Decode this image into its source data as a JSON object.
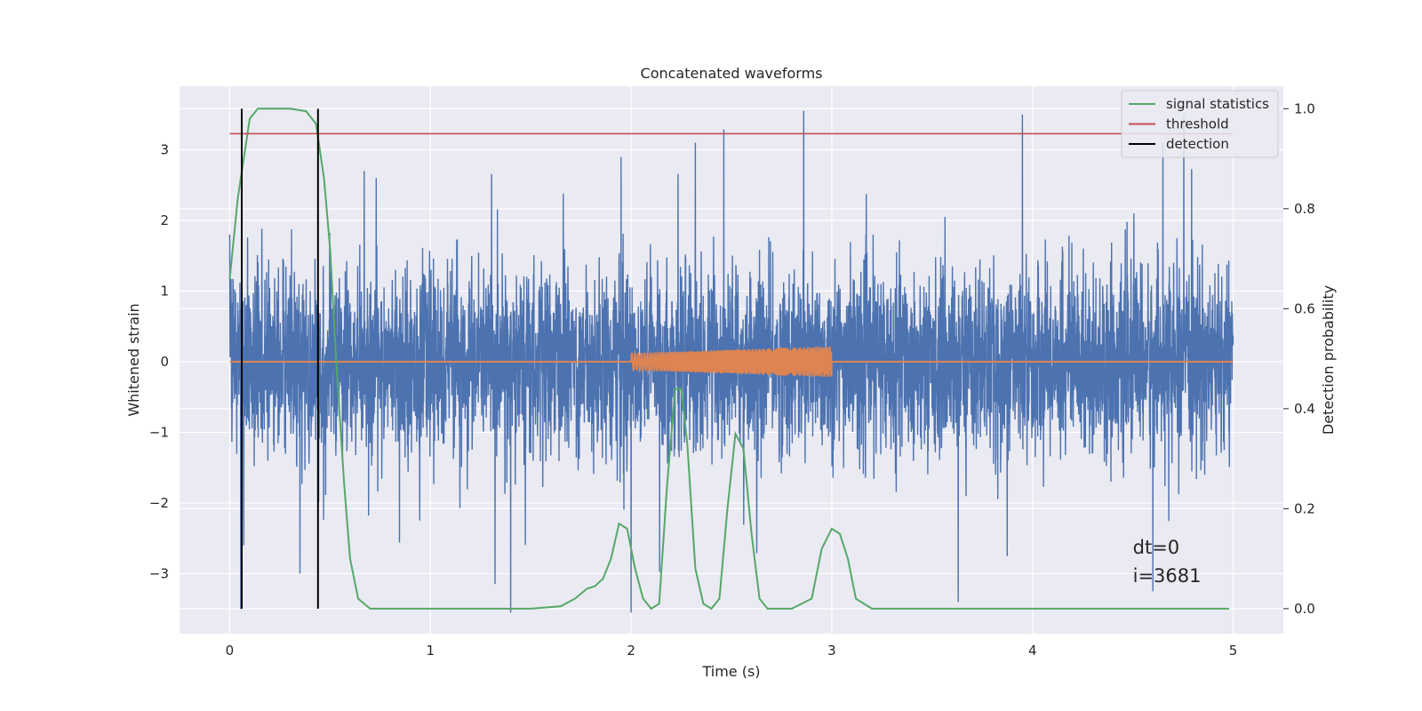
{
  "chart_data": {
    "type": "line",
    "title": "Concatenated waveforms",
    "xlabel": "Time (s)",
    "ylabel_left": "Whitened strain",
    "ylabel_right": "Detection probability",
    "xlim": [
      -0.25,
      5.25
    ],
    "ylim_left": [
      -3.85,
      3.9
    ],
    "ylim_right": [
      -0.05,
      1.045
    ],
    "x_ticks": [
      0,
      1,
      2,
      3,
      4,
      5
    ],
    "x_tick_labels": [
      "0",
      "1",
      "2",
      "3",
      "4",
      "5"
    ],
    "y_left_ticks": [
      -3,
      -2,
      -1,
      0,
      1,
      2,
      3
    ],
    "y_left_tick_labels": [
      "−3",
      "−2",
      "−1",
      "0",
      "1",
      "2",
      "3"
    ],
    "y_right_ticks": [
      0.0,
      0.2,
      0.4,
      0.6,
      0.8,
      1.0
    ],
    "y_right_tick_labels": [
      "0.0",
      "0.2",
      "0.4",
      "0.6",
      "0.8",
      "1.0"
    ],
    "grid": true,
    "legend_position": "top-right",
    "legend": [
      {
        "label": "signal statistics",
        "color": "#55a868"
      },
      {
        "label": "threshold",
        "color": "#c44e52"
      },
      {
        "label": "detection",
        "color": "#000000"
      }
    ],
    "series": [
      {
        "name": "",
        "role": "noisy strain",
        "axis": "left",
        "color": "#4c72b0",
        "x_range": [
          0,
          5
        ],
        "amplitude_envelope_typical": 1.0,
        "peaks": [
          {
            "x": 0.0,
            "y": 1.8
          },
          {
            "x": 0.07,
            "y": -2.6
          },
          {
            "x": 0.35,
            "y": -3.0
          },
          {
            "x": 0.73,
            "y": 2.6
          },
          {
            "x": 1.4,
            "y": -3.55
          },
          {
            "x": 1.95,
            "y": 2.9
          },
          {
            "x": 2.0,
            "y": -3.55
          },
          {
            "x": 2.32,
            "y": 3.1
          },
          {
            "x": 2.86,
            "y": 3.55
          },
          {
            "x": 3.63,
            "y": -3.4
          },
          {
            "x": 3.95,
            "y": 3.5
          },
          {
            "x": 4.6,
            "y": -3.25
          },
          {
            "x": 4.65,
            "y": 3.1
          }
        ]
      },
      {
        "name": "",
        "role": "injected chirp waveform",
        "axis": "left",
        "color": "#dd8452",
        "x": [
          0,
          2.0,
          2.5,
          3.0,
          5.0
        ],
        "amplitude": [
          0,
          0.12,
          0.17,
          0.22,
          0
        ],
        "chirp_range": [
          2.0,
          3.0
        ]
      },
      {
        "name": "signal statistics",
        "axis": "right",
        "color": "#55a868",
        "x": [
          0.0,
          0.04,
          0.1,
          0.14,
          0.2,
          0.3,
          0.38,
          0.43,
          0.47,
          0.5,
          0.53,
          0.57,
          0.6,
          0.64,
          0.7,
          1.0,
          1.5,
          1.65,
          1.72,
          1.78,
          1.82,
          1.86,
          1.9,
          1.94,
          1.98,
          2.02,
          2.06,
          2.1,
          2.14,
          2.18,
          2.22,
          2.25,
          2.28,
          2.32,
          2.36,
          2.4,
          2.44,
          2.48,
          2.52,
          2.56,
          2.6,
          2.64,
          2.68,
          2.72,
          2.8,
          2.9,
          2.95,
          3.0,
          3.04,
          3.08,
          3.12,
          3.2,
          3.5,
          4.0,
          4.5,
          4.98
        ],
        "y": [
          0.66,
          0.82,
          0.98,
          1.0,
          1.0,
          1.0,
          0.995,
          0.97,
          0.86,
          0.72,
          0.5,
          0.25,
          0.1,
          0.02,
          0.0,
          0.0,
          0.0,
          0.005,
          0.02,
          0.04,
          0.045,
          0.06,
          0.1,
          0.17,
          0.16,
          0.08,
          0.02,
          0.0,
          0.01,
          0.25,
          0.44,
          0.44,
          0.33,
          0.08,
          0.01,
          0.0,
          0.02,
          0.2,
          0.35,
          0.32,
          0.15,
          0.02,
          0.0,
          0.0,
          0.0,
          0.02,
          0.12,
          0.16,
          0.15,
          0.1,
          0.02,
          0.0,
          0.0,
          0.0,
          0.0,
          0.0
        ]
      },
      {
        "name": "threshold",
        "axis": "right",
        "color": "#c44e52",
        "x": [
          0,
          5
        ],
        "y": [
          0.95,
          0.95
        ]
      },
      {
        "name": "detection",
        "axis": "right",
        "color": "#000000",
        "type": "vline",
        "x": [
          0.06,
          0.44
        ],
        "y_range": [
          0.0,
          1.0
        ]
      }
    ],
    "annotations": [
      {
        "text": "dt=0",
        "x": 4.5,
        "y": -2.72
      },
      {
        "text": "i=3681",
        "x": 4.5,
        "y": -3.12
      }
    ]
  }
}
